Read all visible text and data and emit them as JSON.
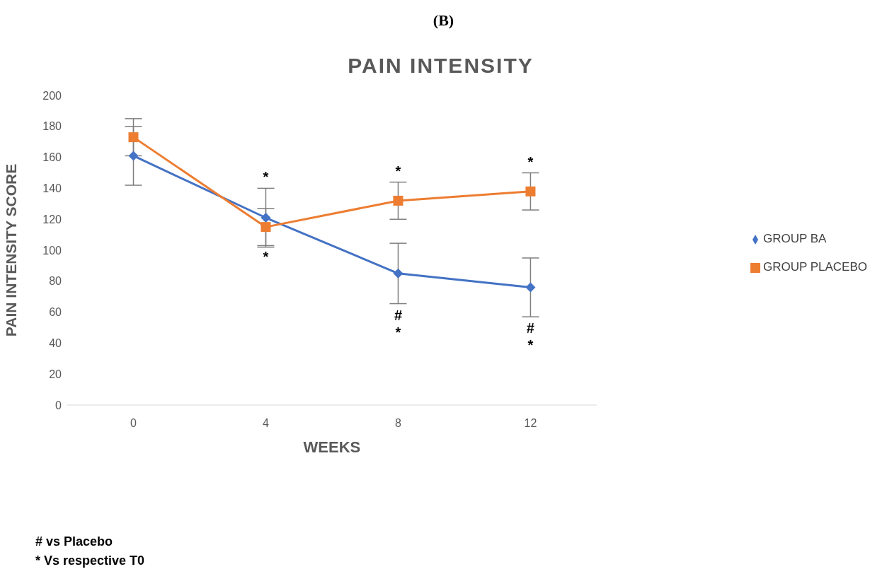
{
  "chart_data": {
    "type": "line",
    "title": "PAIN INTENSITY",
    "xlabel": "WEEKS",
    "ylabel": "PAIN INTENSITY SCORE",
    "x": [
      0,
      4,
      8,
      12
    ],
    "series": [
      {
        "name": "GROUP BA",
        "color": "#4472c4",
        "marker": "diamond",
        "values": [
          161,
          121,
          85,
          76
        ],
        "errors": [
          19,
          19,
          19.5,
          19
        ]
      },
      {
        "name": "GROUP PLACEBO",
        "color": "#ed7d31",
        "marker": "square",
        "values": [
          173,
          115,
          132,
          138
        ],
        "errors": [
          12,
          12,
          12,
          12
        ]
      }
    ],
    "xlim": [
      -2,
      14
    ],
    "xticks": [
      0,
      4,
      8,
      12
    ],
    "ylim": [
      0,
      200
    ],
    "yticks": [
      0,
      20,
      40,
      60,
      80,
      100,
      120,
      140,
      160,
      180,
      200
    ],
    "grid": false,
    "legend": "right",
    "annotations": [
      "(B)",
      {
        "text": "*",
        "x": 4,
        "y": 140
      },
      {
        "text": "*",
        "x": 4,
        "y": 103
      },
      {
        "text": "*",
        "x": 8,
        "y": 144
      },
      {
        "text": "#",
        "x": 8,
        "y": 65.5
      },
      {
        "text": "*",
        "x": 8,
        "y": 65.5
      },
      {
        "text": "*",
        "x": 12,
        "y": 150
      },
      {
        "text": "#",
        "x": 12,
        "y": 57
      },
      {
        "text": "*",
        "x": 12,
        "y": 57
      },
      "# vs Placebo",
      "* Vs respective T0"
    ]
  }
}
